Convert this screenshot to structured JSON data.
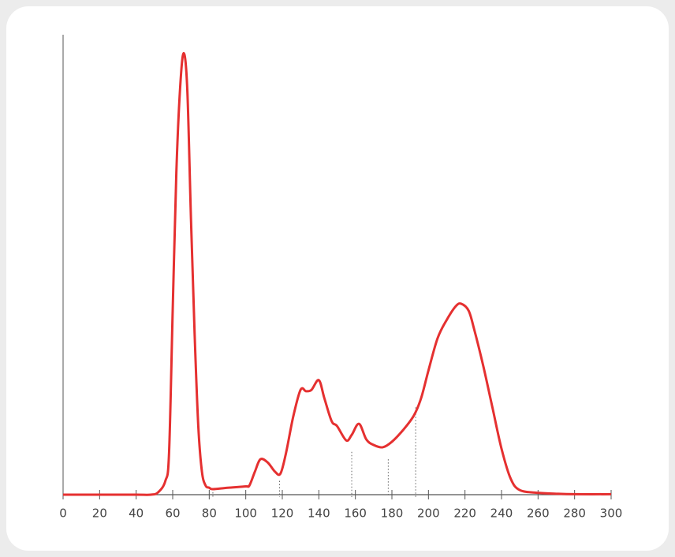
{
  "chart_data": {
    "type": "line",
    "series": [
      {
        "color": "#e53030",
        "x": [
          0,
          20,
          40,
          48,
          52,
          56,
          58,
          60,
          62,
          64,
          66,
          68,
          70,
          72,
          74,
          76,
          78,
          80,
          82,
          90,
          100,
          102,
          105,
          108,
          112,
          116,
          119,
          122,
          126,
          130,
          133,
          136,
          140,
          143,
          147,
          150,
          155,
          158,
          162,
          166,
          170,
          175,
          180,
          186,
          192,
          196,
          200,
          205,
          210,
          215,
          218,
          222,
          225,
          230,
          235,
          240,
          245,
          250,
          260,
          270,
          280,
          300
        ],
        "values": [
          0,
          0,
          0,
          0,
          0.5,
          3,
          9,
          40,
          70,
          88,
          96,
          88,
          60,
          35,
          15,
          5,
          2,
          1.5,
          1.2,
          1.5,
          1.8,
          2,
          5,
          7.7,
          7,
          5,
          4.6,
          9,
          17,
          22.8,
          22.5,
          22.8,
          24.9,
          21,
          16,
          14.9,
          11.8,
          13,
          15.4,
          12,
          10.8,
          10.3,
          11.5,
          14,
          17.2,
          21,
          27,
          34,
          38,
          41,
          41.5,
          40,
          36,
          28,
          19,
          10,
          3.5,
          1,
          0.4,
          0.2,
          0.1,
          0.1
        ]
      }
    ],
    "dividers": {
      "x": [
        82,
        118.5,
        158,
        178,
        193
      ],
      "y": [
        1.2,
        3,
        9.3,
        7.7,
        19
      ]
    },
    "xlim": [
      0,
      300
    ],
    "xticks": [
      0,
      20,
      40,
      60,
      80,
      100,
      120,
      140,
      160,
      180,
      200,
      220,
      240,
      260,
      280,
      300
    ],
    "ylim": [
      0,
      100
    ]
  }
}
